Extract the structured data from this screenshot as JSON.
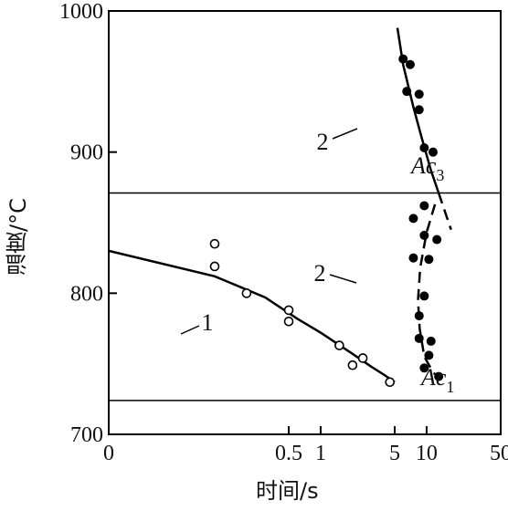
{
  "chart_data": {
    "type": "scatter",
    "title": "",
    "xlabel": "时间/s",
    "ylabel": "温度/°C",
    "xscale": "log",
    "xlim": [
      0.01,
      50
    ],
    "ylim": [
      700,
      1000
    ],
    "xticks": [
      {
        "value": 0.01,
        "label": "0"
      },
      {
        "value": 0.5,
        "label": "0.5"
      },
      {
        "value": 1,
        "label": "1"
      },
      {
        "value": 5,
        "label": "5"
      },
      {
        "value": 10,
        "label": "10"
      },
      {
        "value": 50,
        "label": "50"
      }
    ],
    "yticks": [
      {
        "value": 700,
        "label": "700"
      },
      {
        "value": 800,
        "label": "800"
      },
      {
        "value": 900,
        "label": "900"
      },
      {
        "value": 1000,
        "label": "1000"
      }
    ],
    "hlines": [
      {
        "y": 871,
        "label": "Ac₃"
      },
      {
        "y": 724,
        "label": "Ac₁"
      }
    ],
    "series": [
      {
        "label": "1",
        "marker": "open-circle",
        "points": [
          [
            0.1,
            835
          ],
          [
            0.1,
            819
          ],
          [
            0.2,
            800
          ],
          [
            0.5,
            788
          ],
          [
            0.5,
            780
          ],
          [
            1.5,
            763
          ],
          [
            2,
            749
          ],
          [
            2.5,
            754
          ],
          [
            4.5,
            737
          ]
        ],
        "curve": [
          [
            0.01,
            830
          ],
          [
            0.1,
            812
          ],
          [
            0.3,
            797
          ],
          [
            0.6,
            782
          ],
          [
            1,
            772
          ],
          [
            2,
            757
          ],
          [
            3,
            748
          ],
          [
            4,
            742
          ],
          [
            5,
            737
          ]
        ]
      },
      {
        "label": "2",
        "marker": "filled-circle",
        "points": [
          [
            6,
            966
          ],
          [
            7,
            962
          ],
          [
            6.5,
            943
          ],
          [
            8.5,
            941
          ],
          [
            8.5,
            930
          ],
          [
            9.5,
            903
          ],
          [
            11.5,
            900
          ],
          [
            9.5,
            862
          ],
          [
            7.5,
            853
          ],
          [
            9.5,
            841
          ],
          [
            12.5,
            838
          ],
          [
            7.5,
            825
          ],
          [
            10.5,
            824
          ],
          [
            9.5,
            798
          ],
          [
            8.5,
            784
          ],
          [
            8.5,
            768
          ],
          [
            11,
            766
          ],
          [
            10.5,
            756
          ],
          [
            9.5,
            747
          ],
          [
            13,
            741
          ]
        ],
        "curve": [
          [
            5.3,
            988
          ],
          [
            6,
            962
          ],
          [
            7.5,
            932
          ],
          [
            9,
            910
          ],
          [
            11,
            887
          ],
          [
            13,
            871
          ],
          [
            17,
            845
          ]
        ],
        "curve_dashed": [
          [
            13,
            871
          ],
          [
            17,
            845
          ]
        ],
        "curve2_dashed": [
          [
            12,
            863
          ],
          [
            10,
            843
          ],
          [
            8.7,
            818
          ],
          [
            8.3,
            795
          ],
          [
            8.6,
            775
          ],
          [
            9.5,
            755
          ],
          [
            11.5,
            744
          ],
          [
            13,
            740
          ]
        ]
      }
    ],
    "annotations": [
      {
        "text": "1",
        "x": 1,
        "y": 780
      },
      {
        "text": "2",
        "x": 5.5,
        "y": 900
      },
      {
        "text": "2",
        "x": 5,
        "y": 812
      }
    ]
  }
}
